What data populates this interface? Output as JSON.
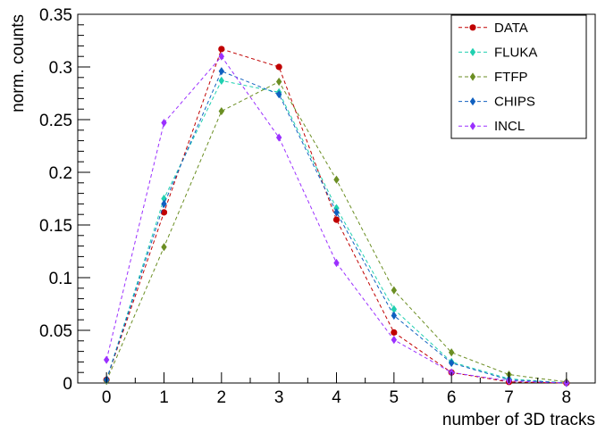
{
  "chart_data": {
    "type": "line",
    "title": "",
    "xlabel": "number of 3D tracks",
    "ylabel": "norm. counts",
    "xlim": [
      -0.5,
      8.5
    ],
    "ylim": [
      0,
      0.35
    ],
    "x": [
      0,
      1,
      2,
      3,
      4,
      5,
      6,
      7,
      8
    ],
    "x_ticks": [
      "0",
      "1",
      "2",
      "3",
      "4",
      "5",
      "6",
      "7",
      "8"
    ],
    "y_ticks": [
      "0",
      "0.05",
      "0.1",
      "0.15",
      "0.2",
      "0.25",
      "0.3",
      "0.35"
    ],
    "grid": false,
    "legend_position": "top-right",
    "series": [
      {
        "name": "DATA",
        "color": "#c00000",
        "marker": "circle",
        "values": [
          0.003,
          0.162,
          0.317,
          0.3,
          0.155,
          0.048,
          0.01,
          0.001,
          0.0
        ]
      },
      {
        "name": "FLUKA",
        "color": "#20d0b0",
        "marker": "diamond",
        "values": [
          0.003,
          0.175,
          0.287,
          0.276,
          0.166,
          0.07,
          0.02,
          0.004,
          0.0
        ]
      },
      {
        "name": "FTFP",
        "color": "#6b8e23",
        "marker": "diamond",
        "values": [
          0.002,
          0.129,
          0.258,
          0.286,
          0.193,
          0.088,
          0.029,
          0.008,
          0.001
        ]
      },
      {
        "name": "CHIPS",
        "color": "#1060c0",
        "marker": "diamond",
        "values": [
          0.003,
          0.17,
          0.296,
          0.274,
          0.162,
          0.064,
          0.019,
          0.003,
          0.0
        ]
      },
      {
        "name": "INCL",
        "color": "#9b30ff",
        "marker": "diamond",
        "values": [
          0.022,
          0.247,
          0.31,
          0.233,
          0.114,
          0.041,
          0.01,
          0.002,
          0.0
        ]
      }
    ]
  }
}
